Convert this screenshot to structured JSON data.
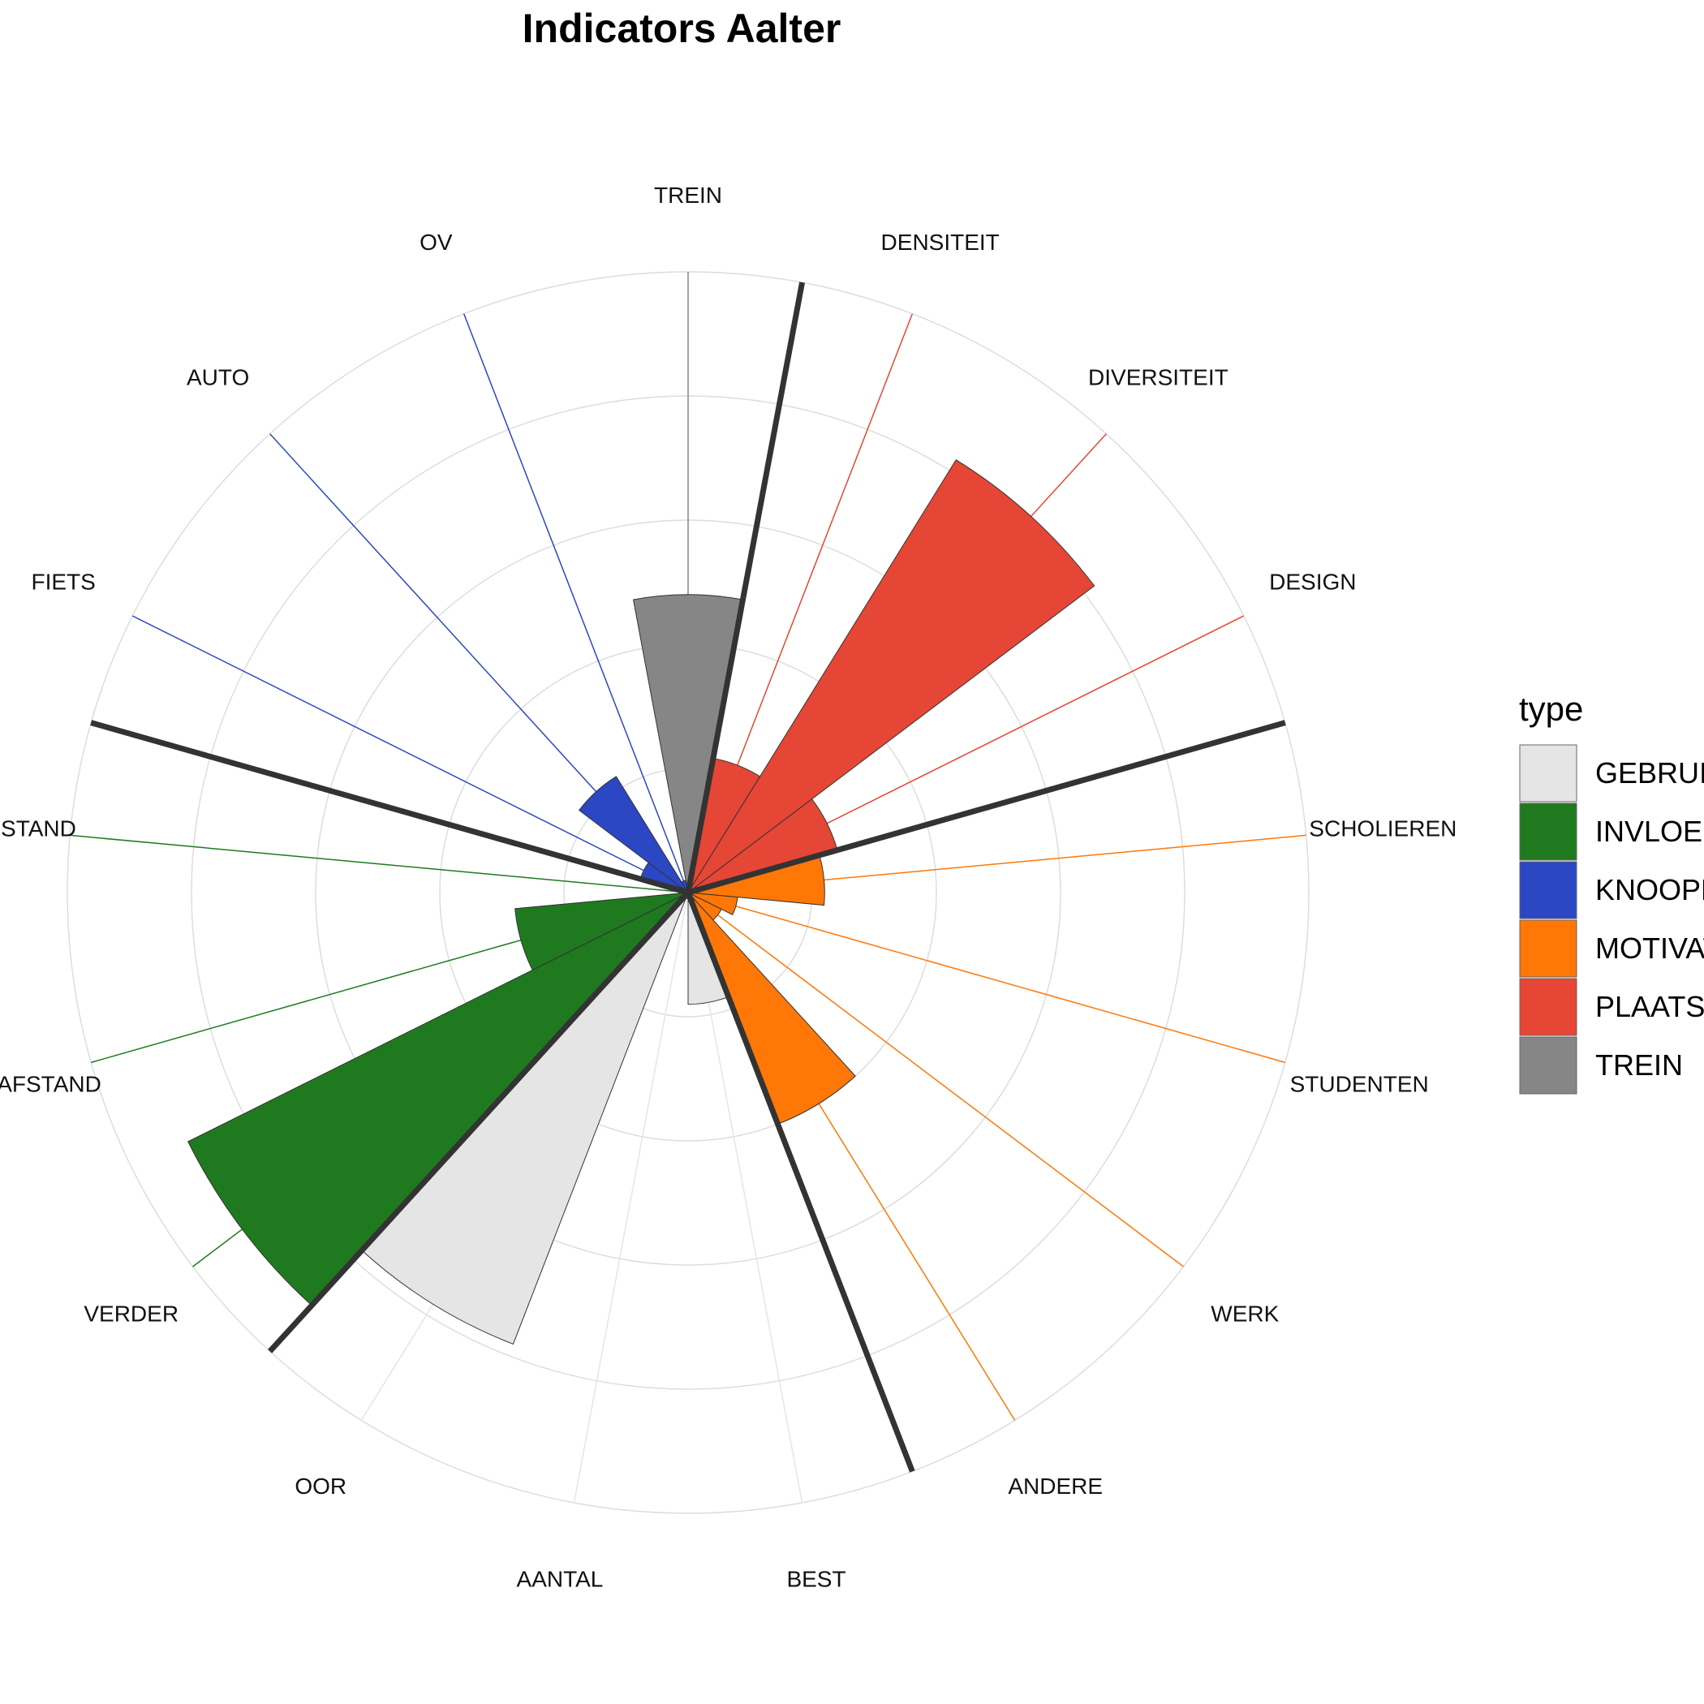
{
  "chart_data": {
    "type": "polar-bar",
    "title": "Indicators Aalter",
    "rmax": 5,
    "grid": true,
    "legend_position": "right",
    "legend": {
      "title": "type",
      "entries": [
        {
          "name": "GEBRUIK",
          "color": "#e5e5e5"
        },
        {
          "name": "INVLOEDSGEBIED",
          "color": "#1f7a1f"
        },
        {
          "name": "KNOOPPUNT",
          "color": "#2b47c4"
        },
        {
          "name": "MOTIVATIE",
          "color": "#ff7707"
        },
        {
          "name": "PLAATSWAARDE",
          "color": "#e64635"
        },
        {
          "name": "TREIN",
          "color": "#868686"
        }
      ]
    },
    "categories": [
      {
        "label": "TREIN",
        "type": "TREIN",
        "value": 2.4
      },
      {
        "label": "DENSITEIT",
        "type": "PLAATSWAARDE",
        "value": 1.1
      },
      {
        "label": "DIVERSITEIT",
        "type": "PLAATSWAARDE",
        "value": 4.1
      },
      {
        "label": "DESIGN",
        "type": "PLAATSWAARDE",
        "value": 1.25
      },
      {
        "label": "SCHOLIEREN",
        "type": "MOTIVATIE",
        "value": 1.1
      },
      {
        "label": "STUDENTEN",
        "type": "MOTIVATIE",
        "value": 0.4
      },
      {
        "label": "WERK",
        "type": "MOTIVATIE",
        "value": 0.3
      },
      {
        "label": "ANDERE",
        "type": "MOTIVATIE",
        "value": 2.0
      },
      {
        "label": "BEST",
        "type": "GEBRUIK",
        "value": 0.9
      },
      {
        "label": "AANTAL",
        "type": "GEBRUIK",
        "value": 0.05
      },
      {
        "label": "OOR",
        "type": "GEBRUIK",
        "value": 3.9
      },
      {
        "label": "VERDER",
        "type": "INVLOEDSGEBIED",
        "value": 4.5
      },
      {
        "label": "FIETSAFSTAND",
        "type": "INVLOEDSGEBIED",
        "value": 1.4
      },
      {
        "label": "LOOPAFSTAND",
        "type": "INVLOEDSGEBIED",
        "value": 0.01
      },
      {
        "label": "FIETS",
        "type": "KNOOPPUNT",
        "value": 0.4
      },
      {
        "label": "AUTO",
        "type": "KNOOPPUNT",
        "value": 1.1
      },
      {
        "label": "OV",
        "type": "KNOOPPUNT",
        "value": 0.1
      }
    ],
    "group_dividers_after": [
      "TREIN",
      "DESIGN",
      "ANDERE",
      "OOR",
      "LOOPAFSTAND"
    ]
  }
}
